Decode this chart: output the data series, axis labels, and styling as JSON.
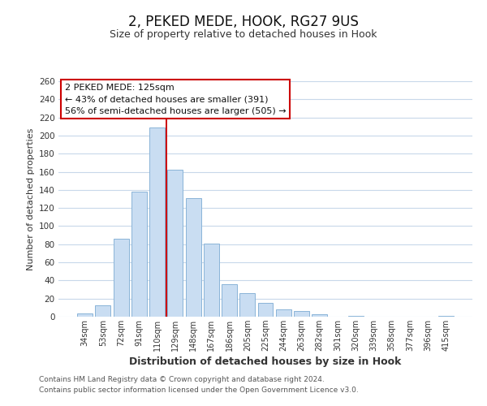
{
  "title": "2, PEKED MEDE, HOOK, RG27 9US",
  "subtitle": "Size of property relative to detached houses in Hook",
  "xlabel": "Distribution of detached houses by size in Hook",
  "ylabel": "Number of detached properties",
  "bar_color": "#c9ddf2",
  "bar_edge_color": "#8ab4d8",
  "background_color": "#ffffff",
  "grid_color": "#c8d8ea",
  "categories": [
    "34sqm",
    "53sqm",
    "72sqm",
    "91sqm",
    "110sqm",
    "129sqm",
    "148sqm",
    "167sqm",
    "186sqm",
    "205sqm",
    "225sqm",
    "244sqm",
    "263sqm",
    "282sqm",
    "301sqm",
    "320sqm",
    "339sqm",
    "358sqm",
    "377sqm",
    "396sqm",
    "415sqm"
  ],
  "values": [
    4,
    13,
    86,
    138,
    209,
    162,
    131,
    81,
    36,
    26,
    15,
    8,
    6,
    3,
    0,
    1,
    0,
    0,
    0,
    0,
    1
  ],
  "ylim": [
    0,
    260
  ],
  "yticks": [
    0,
    20,
    40,
    60,
    80,
    100,
    120,
    140,
    160,
    180,
    200,
    220,
    240,
    260
  ],
  "red_line_index": 4.5,
  "annotation_title": "2 PEKED MEDE: 125sqm",
  "annotation_line1": "← 43% of detached houses are smaller (391)",
  "annotation_line2": "56% of semi-detached houses are larger (505) →",
  "footer1": "Contains HM Land Registry data © Crown copyright and database right 2024.",
  "footer2": "Contains public sector information licensed under the Open Government Licence v3.0."
}
